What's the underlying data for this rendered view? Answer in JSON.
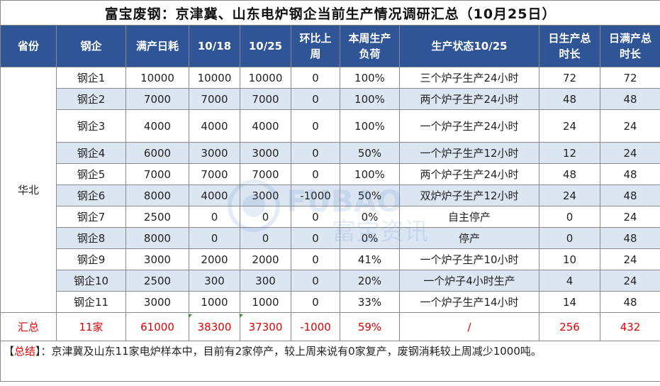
{
  "title": "富宝废钢：京津冀、山东电炉钢企当前生产情况调研汇总（10月25日）",
  "headers": [
    "省份",
    "钢企",
    "满产日耗",
    "10/18",
    "10/25",
    "环比上周",
    "本周生产负荷",
    "生产状态10/25",
    "日生产总时长",
    "日满产总时长"
  ],
  "province": "华北",
  "rows": [
    {
      "company": "钢企1",
      "full": "10000",
      "d1018": "10000",
      "d1025": "10000",
      "wow": "0",
      "load": "100%",
      "status": "三个炉子生产24小时",
      "hours": "72",
      "full_hours": "72"
    },
    {
      "company": "钢企2",
      "full": "7000",
      "d1018": "7000",
      "d1025": "7000",
      "wow": "0",
      "load": "100%",
      "status": "两个炉子生产24小时",
      "hours": "48",
      "full_hours": "48"
    },
    {
      "company": "钢企3",
      "full": "4000",
      "d1018": "4000",
      "d1025": "4000",
      "wow": "0",
      "load": "100%",
      "status": "一个炉子生产24小时",
      "hours": "24",
      "full_hours": "24"
    },
    {
      "company": "钢企4",
      "full": "6000",
      "d1018": "3000",
      "d1025": "3000",
      "wow": "0",
      "load": "50%",
      "status": "一个炉子生产12小时",
      "hours": "12",
      "full_hours": "24"
    },
    {
      "company": "钢企5",
      "full": "7000",
      "d1018": "7000",
      "d1025": "7000",
      "wow": "0",
      "load": "100%",
      "status": "两个炉子生产24小时",
      "hours": "48",
      "full_hours": "48"
    },
    {
      "company": "钢企6",
      "full": "8000",
      "d1018": "4000",
      "d1025": "3000",
      "wow": "-1000",
      "load": "50%",
      "status": "双炉炉子生产12小时",
      "hours": "24",
      "full_hours": "48"
    },
    {
      "company": "钢企7",
      "full": "2500",
      "d1018": "0",
      "d1025": "0",
      "wow": "0",
      "load": "0%",
      "status": "自主停产",
      "hours": "0",
      "full_hours": "24"
    },
    {
      "company": "钢企8",
      "full": "8000",
      "d1018": "0",
      "d1025": "0",
      "wow": "0",
      "load": "0%",
      "status": "停产",
      "hours": "0",
      "full_hours": "48"
    },
    {
      "company": "钢企9",
      "full": "3000",
      "d1018": "2000",
      "d1025": "2000",
      "wow": "0",
      "load": "41%",
      "status": "一个炉子生产10小时",
      "hours": "10",
      "full_hours": "24"
    },
    {
      "company": "钢企10",
      "full": "2500",
      "d1018": "300",
      "d1025": "300",
      "wow": "0",
      "load": "20%",
      "status": "一个炉子4小时生产",
      "hours": "4",
      "full_hours": "24"
    },
    {
      "company": "钢企11",
      "full": "3000",
      "d1018": "1000",
      "d1025": "1000",
      "wow": "0",
      "load": "33%",
      "status": "一个炉子生产14小时",
      "hours": "14",
      "full_hours": "48"
    }
  ],
  "total": {
    "label": "汇总",
    "company": "11家",
    "full": "61000",
    "d1018": "38300",
    "d1025": "37300",
    "wow": "-1000",
    "load": "59%",
    "status": "/",
    "hours": "256",
    "full_hours": "432"
  },
  "note": {
    "prefix": "【",
    "key": "总结",
    "text": "】：京津冀及山东11家电炉样本中，目前有2家停产，较上周来说有0家复产，废钢消耗较上周减少1000吨。"
  },
  "watermark": {
    "latin": "FUBAO",
    "chinese": "富宝资讯"
  },
  "colors": {
    "header_bg": "#2f5597",
    "alt_row_bg": "#dce6f2",
    "total_text": "#e00000",
    "marker": "#2e8b2e"
  }
}
